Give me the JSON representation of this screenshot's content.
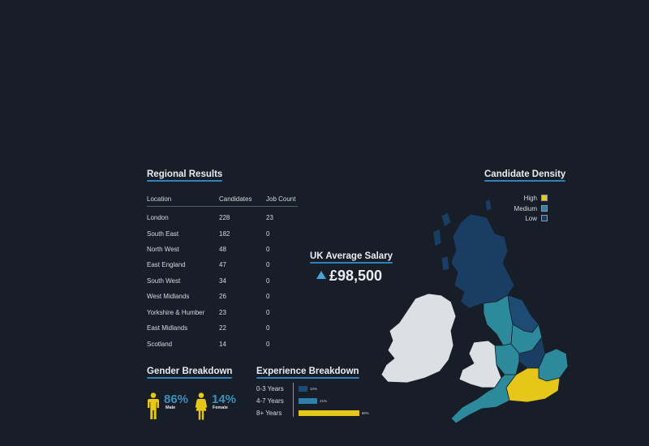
{
  "regional": {
    "title": "Regional Results",
    "headers": [
      "Location",
      "Candidates",
      "Job Count"
    ],
    "rows": [
      {
        "location": "London",
        "candidates": "228",
        "jobs": "23"
      },
      {
        "location": "South East",
        "candidates": "182",
        "jobs": "0"
      },
      {
        "location": "North West",
        "candidates": "48",
        "jobs": "0"
      },
      {
        "location": "East England",
        "candidates": "47",
        "jobs": "0"
      },
      {
        "location": "South West",
        "candidates": "34",
        "jobs": "0"
      },
      {
        "location": "West Midlands",
        "candidates": "26",
        "jobs": "0"
      },
      {
        "location": "Yorkshire & Humber",
        "candidates": "23",
        "jobs": "0"
      },
      {
        "location": "East Midlands",
        "candidates": "22",
        "jobs": "0"
      },
      {
        "location": "Scotland",
        "candidates": "14",
        "jobs": "0"
      }
    ]
  },
  "salary": {
    "title": "UK Average Salary",
    "value": "£98,500",
    "trend_icon": "up-triangle-icon"
  },
  "gender": {
    "title": "Gender Breakdown",
    "male_pct": "86%",
    "male_label": "Male",
    "female_pct": "14%",
    "female_label": "Female",
    "icon_color": "#e6c619"
  },
  "experience": {
    "title": "Experience Breakdown",
    "items": [
      {
        "label": "0-3 Years",
        "value_label": "10%",
        "value": 10,
        "color": "#1d4b74"
      },
      {
        "label": "4-7 Years",
        "value_label": "21%",
        "value": 21,
        "color": "#2f7fad"
      },
      {
        "label": "8+ Years",
        "value_label": "68%",
        "value": 68,
        "color": "#e6c619"
      }
    ]
  },
  "density": {
    "title": "Candidate Density",
    "legend": [
      {
        "label": "High",
        "color": "#e6c619"
      },
      {
        "label": "Medium",
        "color": "#2f7fad"
      },
      {
        "label": "Low",
        "color": "#1a3d63"
      }
    ],
    "colors": {
      "scotland": "#1a3d63",
      "north_east": "#1d4b74",
      "north_west": "#2d8a9c",
      "yorkshire": "#2d8a9c",
      "east_midlands": "#1a3d63",
      "west_midlands": "#2d8a9c",
      "east_england": "#2d8a9c",
      "london_se": "#e6c619",
      "south_west": "#2d8a9c",
      "wales": "#dcdfe3",
      "ireland": "#dcdfe3"
    }
  }
}
